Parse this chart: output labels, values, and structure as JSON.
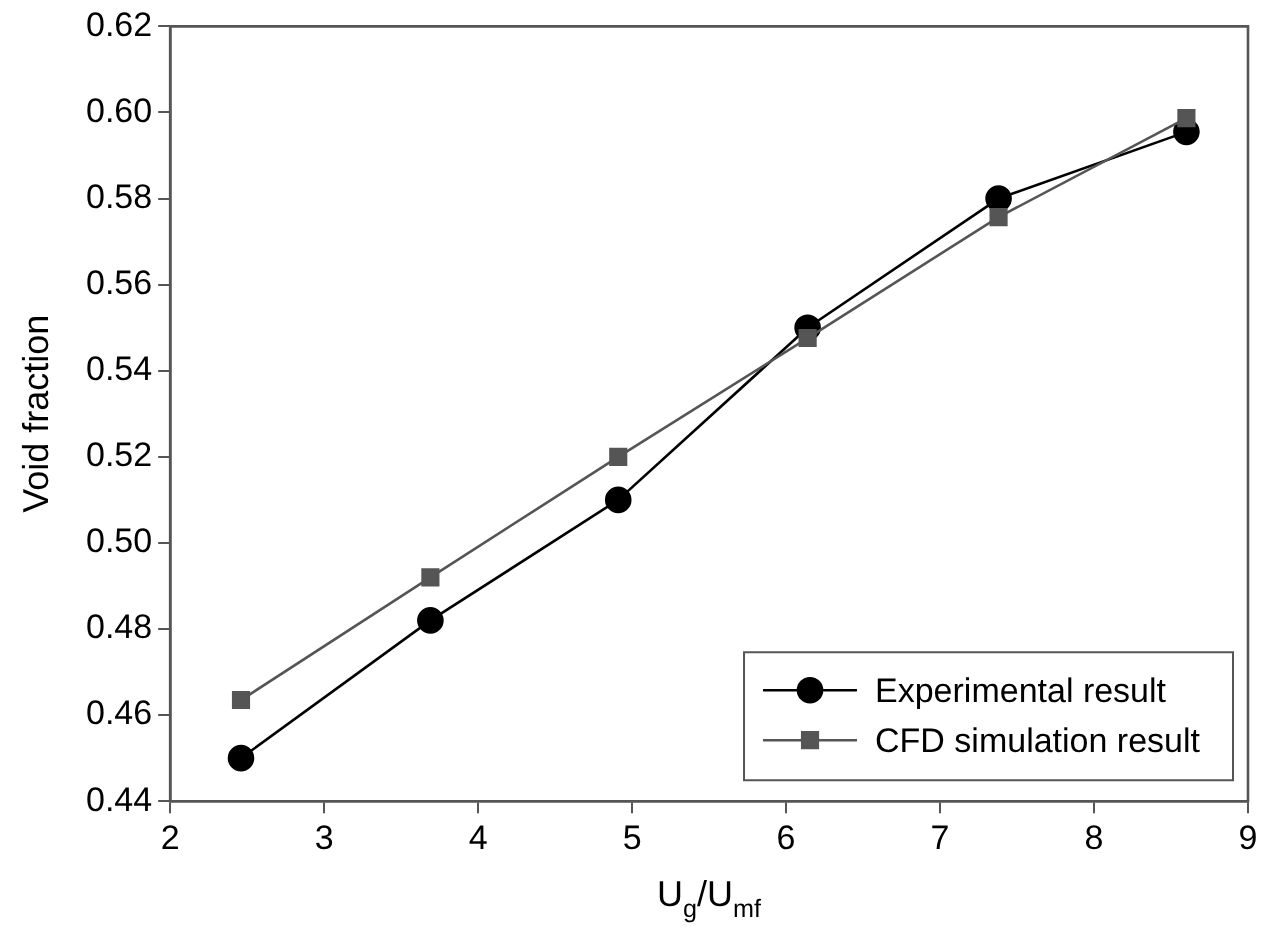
{
  "chart_data": {
    "type": "line",
    "xlabel": "U$_{g}$/U$_{mf}$",
    "ylabel": "Void fraction",
    "xlim": [
      2,
      9
    ],
    "xticks": [
      2,
      3,
      4,
      5,
      6,
      7,
      8,
      9
    ],
    "ylim": [
      0.44,
      0.62
    ],
    "yticks": [
      0.44,
      0.46,
      0.48,
      {
        "value": 0.5,
        "label": "0.50"
      },
      0.52,
      0.54,
      0.56,
      0.58,
      {
        "value": 0.6,
        "label": "0.60"
      },
      0.62
    ],
    "grid": false,
    "legend": "bottom right",
    "series": [
      {
        "name": "Experimental result",
        "color": "#000000",
        "marker": "circle",
        "x": [
          2.46,
          3.69,
          4.91,
          6.14,
          7.38,
          8.6
        ],
        "values": [
          0.45,
          0.482,
          0.51,
          0.55,
          0.58,
          0.5955
        ]
      },
      {
        "name": "CFD simulation result",
        "color": "#555555",
        "marker": "square",
        "x": [
          2.46,
          3.69,
          4.91,
          6.14,
          7.38,
          8.6
        ],
        "values": [
          0.4635,
          0.492,
          0.52,
          0.5476,
          0.5757,
          0.5987
        ]
      }
    ]
  }
}
